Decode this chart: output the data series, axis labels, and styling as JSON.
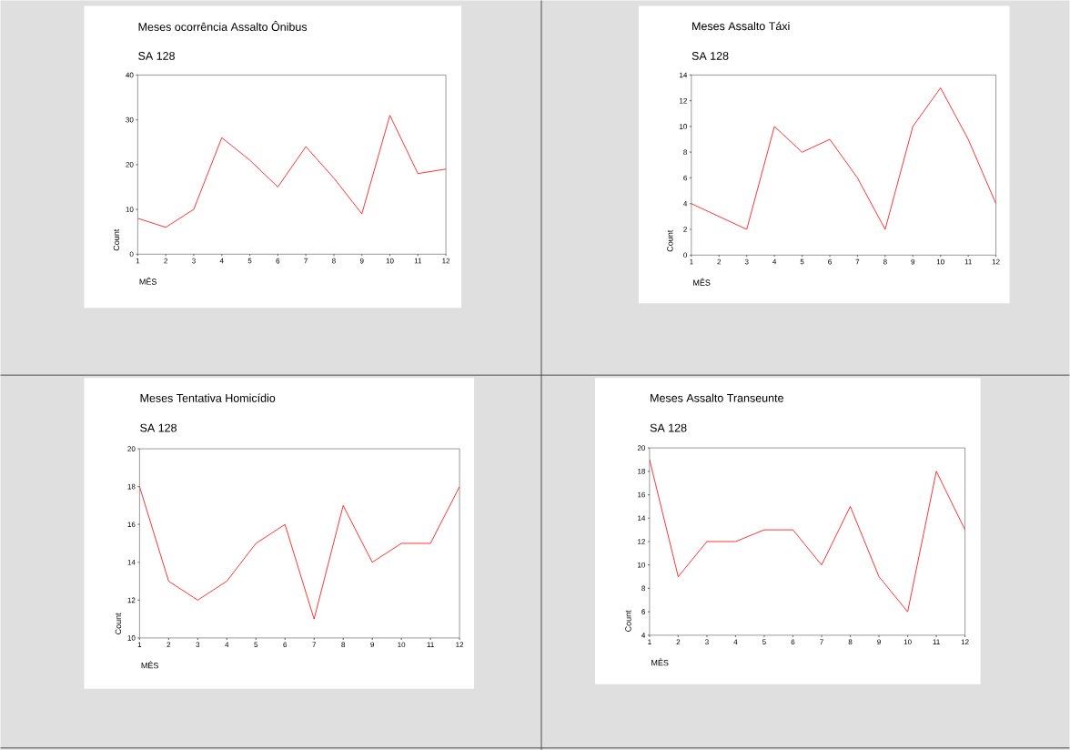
{
  "chart_data": [
    {
      "type": "line",
      "title": "Meses ocorrência Assalto Ônibus",
      "subtitle": "SA 128",
      "xlabel": "MÊS",
      "ylabel": "Count",
      "x": [
        1,
        2,
        3,
        4,
        5,
        6,
        7,
        8,
        9,
        10,
        11,
        12
      ],
      "xlim": [
        1,
        12
      ],
      "xticks": [
        1,
        2,
        3,
        4,
        5,
        6,
        7,
        8,
        9,
        10,
        11,
        12
      ],
      "ylim": [
        0,
        40
      ],
      "yticks": [
        0,
        10,
        20,
        30,
        40
      ],
      "color": "#ff0000",
      "values": [
        8,
        6,
        10,
        26,
        21,
        15,
        24,
        17,
        9,
        31,
        18,
        19
      ]
    },
    {
      "type": "line",
      "title": "Meses Assalto Táxi",
      "subtitle": "SA 128",
      "xlabel": "MÊS",
      "ylabel": "Count",
      "x": [
        1,
        2,
        3,
        4,
        5,
        6,
        7,
        8,
        9,
        10,
        11,
        12
      ],
      "xlim": [
        1,
        12
      ],
      "xticks": [
        1,
        2,
        3,
        4,
        5,
        6,
        7,
        8,
        9,
        10,
        11,
        12
      ],
      "ylim": [
        0,
        14
      ],
      "yticks": [
        0,
        2,
        4,
        6,
        8,
        10,
        12,
        14
      ],
      "color": "#ff0000",
      "values": [
        4,
        3,
        2,
        10,
        8,
        9,
        6,
        2,
        10,
        13,
        9,
        4
      ]
    },
    {
      "type": "line",
      "title": "Meses Tentativa Homicídio",
      "subtitle": "SA 128",
      "xlabel": "MÊS",
      "ylabel": "Count",
      "x": [
        1,
        2,
        3,
        4,
        5,
        6,
        7,
        8,
        9,
        10,
        11,
        12
      ],
      "xlim": [
        1,
        12
      ],
      "xticks": [
        1,
        2,
        3,
        4,
        5,
        6,
        7,
        8,
        9,
        10,
        11,
        12
      ],
      "ylim": [
        10,
        20
      ],
      "yticks": [
        10,
        12,
        14,
        16,
        18,
        20
      ],
      "color": "#ff0000",
      "values": [
        18,
        13,
        12,
        13,
        15,
        16,
        11,
        17,
        14,
        15,
        15,
        18
      ]
    },
    {
      "type": "line",
      "title": "Meses Assalto Transeunte",
      "subtitle": "SA 128",
      "xlabel": "MÊS",
      "ylabel": "Count",
      "x": [
        1,
        2,
        3,
        4,
        5,
        6,
        7,
        8,
        9,
        10,
        11,
        12
      ],
      "xlim": [
        1,
        12
      ],
      "xticks": [
        1,
        2,
        3,
        4,
        5,
        6,
        7,
        8,
        9,
        10,
        11,
        12
      ],
      "ylim": [
        4,
        20
      ],
      "yticks": [
        4,
        6,
        8,
        10,
        12,
        14,
        16,
        18,
        20
      ],
      "color": "#ff0000",
      "values": [
        19,
        9,
        12,
        12,
        13,
        13,
        10,
        15,
        9,
        6,
        18,
        13
      ]
    }
  ]
}
